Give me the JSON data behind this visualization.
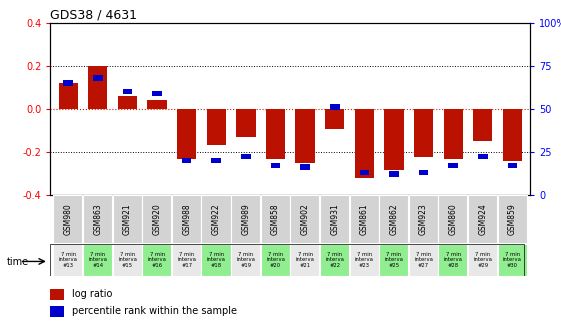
{
  "title": "GDS38 / 4631",
  "samples": [
    "GSM980",
    "GSM863",
    "GSM921",
    "GSM920",
    "GSM988",
    "GSM922",
    "GSM989",
    "GSM858",
    "GSM902",
    "GSM931",
    "GSM861",
    "GSM862",
    "GSM923",
    "GSM860",
    "GSM924",
    "GSM859"
  ],
  "intervals": [
    "#13",
    "#14",
    "#15",
    "#16",
    "#17",
    "#18",
    "#19",
    "#20",
    "#21",
    "#22",
    "#23",
    "#25",
    "#27",
    "#28",
    "#29",
    "#30"
  ],
  "log_ratio": [
    0.12,
    0.2,
    0.06,
    0.04,
    -0.235,
    -0.17,
    -0.13,
    -0.235,
    -0.255,
    -0.095,
    -0.325,
    -0.285,
    -0.225,
    -0.235,
    -0.15,
    -0.245
  ],
  "percentile_val": [
    65,
    68,
    60,
    59,
    20,
    20,
    22,
    17,
    16,
    51,
    13,
    12,
    13,
    17,
    22,
    17
  ],
  "bar_color": "#bb1100",
  "percentile_color": "#0000cc",
  "bg_color_gray": "#d3d3d3",
  "bg_color_green": "#90ee90",
  "bg_color_gray2": "#e8e8e8",
  "ylim": [
    -0.4,
    0.4
  ],
  "yticks_left": [
    -0.4,
    -0.2,
    0.0,
    0.2,
    0.4
  ],
  "yticks_right": [
    0,
    25,
    50,
    75,
    100
  ],
  "right_ylim": [
    0,
    100
  ],
  "dotted_line_color": "#000000",
  "zero_line_color": "#cc2200"
}
